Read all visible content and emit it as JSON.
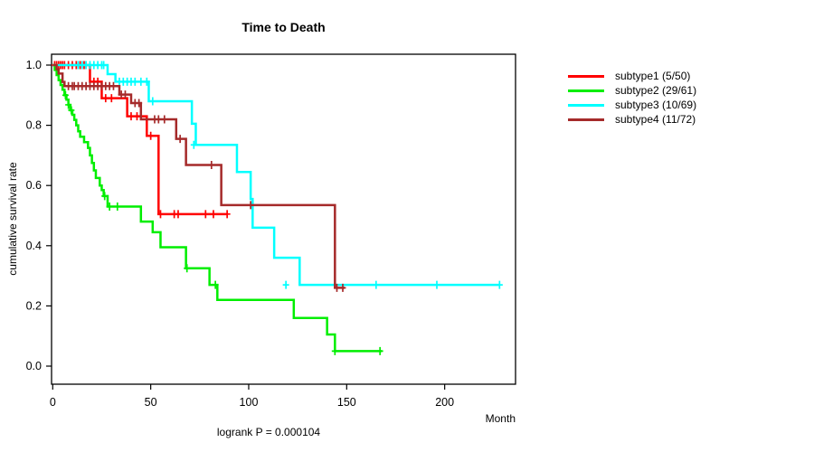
{
  "title": "Time to Death",
  "y_axis": {
    "label": "cumulative survival rate",
    "tick_labels": [
      "0.0",
      "0.2",
      "0.4",
      "0.6",
      "0.8",
      "1.0"
    ],
    "tick_values": [
      0,
      0.2,
      0.4,
      0.6,
      0.8,
      1.0
    ]
  },
  "x_axis": {
    "label": "Month",
    "tick_labels": [
      "0",
      "50",
      "100",
      "150",
      "200"
    ],
    "tick_values": [
      0,
      50,
      100,
      150,
      200
    ]
  },
  "footnote": "logrank P = 0.000104",
  "legend": {
    "items": [
      {
        "label": "subtype1 (5/50)",
        "color": "#ff0000"
      },
      {
        "label": "subtype2 (29/61)",
        "color": "#00ee00"
      },
      {
        "label": "subtype3 (10/69)",
        "color": "#00ffff"
      },
      {
        "label": "subtype4 (11/72)",
        "color": "#a52a2a"
      }
    ]
  },
  "chart_data": {
    "type": "line",
    "subtype": "kaplan-meier-step",
    "title": "Time to Death",
    "xlabel": "Month",
    "ylabel": "cumulative survival rate",
    "xlim": [
      0,
      235
    ],
    "ylim": [
      0,
      1.0
    ],
    "grid": false,
    "legend_position": "right-outside",
    "logrank_p": "0.000104",
    "series": [
      {
        "name": "subtype1 (5/50)",
        "color": "#ff0000",
        "events_total": "5/50",
        "steps": [
          [
            0,
            1.0
          ],
          [
            19,
            0.945
          ],
          [
            25,
            0.89
          ],
          [
            38,
            0.83
          ],
          [
            48,
            0.765
          ],
          [
            54,
            0.505
          ]
        ],
        "end_month": 89,
        "censors": [
          [
            1,
            1.0
          ],
          [
            2,
            1.0
          ],
          [
            3,
            1.0
          ],
          [
            4,
            1.0
          ],
          [
            5,
            1.0
          ],
          [
            6,
            1.0
          ],
          [
            8,
            1.0
          ],
          [
            10,
            1.0
          ],
          [
            12,
            1.0
          ],
          [
            14,
            1.0
          ],
          [
            16,
            1.0
          ],
          [
            17,
            1.0
          ],
          [
            21,
            0.945
          ],
          [
            23,
            0.945
          ],
          [
            27,
            0.89
          ],
          [
            30,
            0.89
          ],
          [
            40,
            0.83
          ],
          [
            43,
            0.83
          ],
          [
            50,
            0.765
          ],
          [
            55,
            0.505
          ],
          [
            62,
            0.505
          ],
          [
            64,
            0.505
          ],
          [
            78,
            0.505
          ],
          [
            82,
            0.505
          ],
          [
            89,
            0.505
          ]
        ]
      },
      {
        "name": "subtype2 (29/61)",
        "color": "#00ee00",
        "events_total": "29/61",
        "steps": [
          [
            0,
            1.0
          ],
          [
            1,
            0.984
          ],
          [
            2,
            0.967
          ],
          [
            3,
            0.95
          ],
          [
            4,
            0.934
          ],
          [
            5,
            0.918
          ],
          [
            6,
            0.9
          ],
          [
            7,
            0.885
          ],
          [
            8,
            0.868
          ],
          [
            9,
            0.85
          ],
          [
            10,
            0.835
          ],
          [
            11,
            0.818
          ],
          [
            12,
            0.8
          ],
          [
            13,
            0.78
          ],
          [
            14,
            0.762
          ],
          [
            16,
            0.744
          ],
          [
            18,
            0.725
          ],
          [
            19,
            0.7
          ],
          [
            20,
            0.675
          ],
          [
            21,
            0.65
          ],
          [
            22,
            0.625
          ],
          [
            24,
            0.6
          ],
          [
            25,
            0.585
          ],
          [
            26,
            0.565
          ],
          [
            28,
            0.53
          ],
          [
            45,
            0.48
          ],
          [
            51,
            0.445
          ],
          [
            55,
            0.395
          ],
          [
            68,
            0.325
          ],
          [
            80,
            0.27
          ],
          [
            84,
            0.22
          ],
          [
            123,
            0.16
          ],
          [
            140,
            0.105
          ],
          [
            144,
            0.05
          ]
        ],
        "end_month": 168,
        "censors": [
          [
            6.5,
            0.9
          ],
          [
            8,
            0.868
          ],
          [
            9.5,
            0.85
          ],
          [
            26.5,
            0.565
          ],
          [
            29,
            0.53
          ],
          [
            33,
            0.53
          ],
          [
            68.5,
            0.325
          ],
          [
            83,
            0.27
          ],
          [
            144,
            0.05
          ],
          [
            167,
            0.05
          ]
        ]
      },
      {
        "name": "subtype3 (10/69)",
        "color": "#00ffff",
        "events_total": "10/69",
        "steps": [
          [
            0,
            1.0
          ],
          [
            28,
            0.97
          ],
          [
            32,
            0.945
          ],
          [
            49,
            0.88
          ],
          [
            71,
            0.805
          ],
          [
            73,
            0.735
          ],
          [
            94,
            0.645
          ],
          [
            101,
            0.555
          ],
          [
            102,
            0.46
          ],
          [
            113,
            0.36
          ],
          [
            126,
            0.27
          ]
        ],
        "end_month": 228,
        "censors": [
          [
            13,
            1.0
          ],
          [
            15,
            1.0
          ],
          [
            17,
            1.0
          ],
          [
            19,
            1.0
          ],
          [
            21,
            1.0
          ],
          [
            23,
            1.0
          ],
          [
            25,
            1.0
          ],
          [
            26,
            1.0
          ],
          [
            34,
            0.945
          ],
          [
            36,
            0.945
          ],
          [
            38,
            0.945
          ],
          [
            40,
            0.945
          ],
          [
            42,
            0.945
          ],
          [
            45,
            0.945
          ],
          [
            48,
            0.945
          ],
          [
            51,
            0.88
          ],
          [
            72,
            0.735
          ],
          [
            119,
            0.27
          ],
          [
            165,
            0.27
          ],
          [
            196,
            0.27
          ],
          [
            228,
            0.27
          ]
        ]
      },
      {
        "name": "subtype4 (11/72)",
        "color": "#a52a2a",
        "events_total": "11/72",
        "steps": [
          [
            0,
            1.0
          ],
          [
            2,
            0.986
          ],
          [
            3,
            0.972
          ],
          [
            5,
            0.944
          ],
          [
            6,
            0.93
          ],
          [
            34,
            0.902
          ],
          [
            40,
            0.874
          ],
          [
            45,
            0.82
          ],
          [
            63,
            0.755
          ],
          [
            68,
            0.668
          ],
          [
            86,
            0.535
          ],
          [
            144,
            0.26
          ]
        ],
        "end_month": 149,
        "censors": [
          [
            8,
            0.93
          ],
          [
            10,
            0.93
          ],
          [
            11,
            0.93
          ],
          [
            13,
            0.93
          ],
          [
            15,
            0.93
          ],
          [
            17,
            0.93
          ],
          [
            19,
            0.93
          ],
          [
            21,
            0.93
          ],
          [
            23,
            0.93
          ],
          [
            25,
            0.93
          ],
          [
            27,
            0.93
          ],
          [
            29,
            0.93
          ],
          [
            31,
            0.93
          ],
          [
            35,
            0.902
          ],
          [
            37,
            0.902
          ],
          [
            42,
            0.874
          ],
          [
            44,
            0.874
          ],
          [
            52,
            0.82
          ],
          [
            54,
            0.82
          ],
          [
            57,
            0.82
          ],
          [
            65,
            0.755
          ],
          [
            81,
            0.668
          ],
          [
            101,
            0.535
          ],
          [
            145,
            0.26
          ],
          [
            148,
            0.26
          ]
        ]
      }
    ]
  }
}
